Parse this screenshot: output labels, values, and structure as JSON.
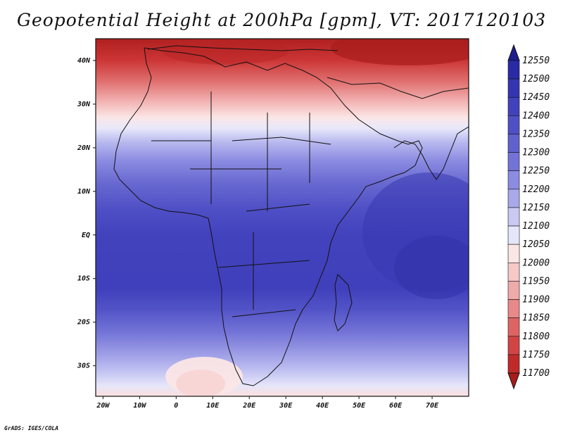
{
  "title": "Geopotential Height at 200hPa [gpm], VT: 2017120103",
  "credit": "GrADS: IGES/COLA",
  "map": {
    "lat_ticks": [
      "40N",
      "30N",
      "20N",
      "10N",
      "EQ",
      "10S",
      "20S",
      "30S"
    ],
    "lon_ticks": [
      "20W",
      "10W",
      "0",
      "10E",
      "20E",
      "30E",
      "40E",
      "50E",
      "60E",
      "70E"
    ],
    "lat_range": [
      -37,
      45
    ],
    "lon_range": [
      -22,
      80
    ]
  },
  "colorbar": {
    "levels": [
      "12550",
      "12500",
      "12450",
      "12400",
      "12350",
      "12300",
      "12250",
      "12200",
      "12150",
      "12100",
      "12050",
      "12000",
      "11950",
      "11900",
      "11850",
      "11800",
      "11750",
      "11700"
    ],
    "colors": [
      "#1e1e8c",
      "#2a2aa6",
      "#3535b4",
      "#4242bd",
      "#5050c6",
      "#6161ce",
      "#7373d7",
      "#8b8be1",
      "#a8a8eb",
      "#c9c9f4",
      "#e6e6fa",
      "#fbe6e6",
      "#f6c8c8",
      "#efaaaa",
      "#e88888",
      "#de6464",
      "#d24444",
      "#c02a2a",
      "#a81c1c"
    ]
  }
}
